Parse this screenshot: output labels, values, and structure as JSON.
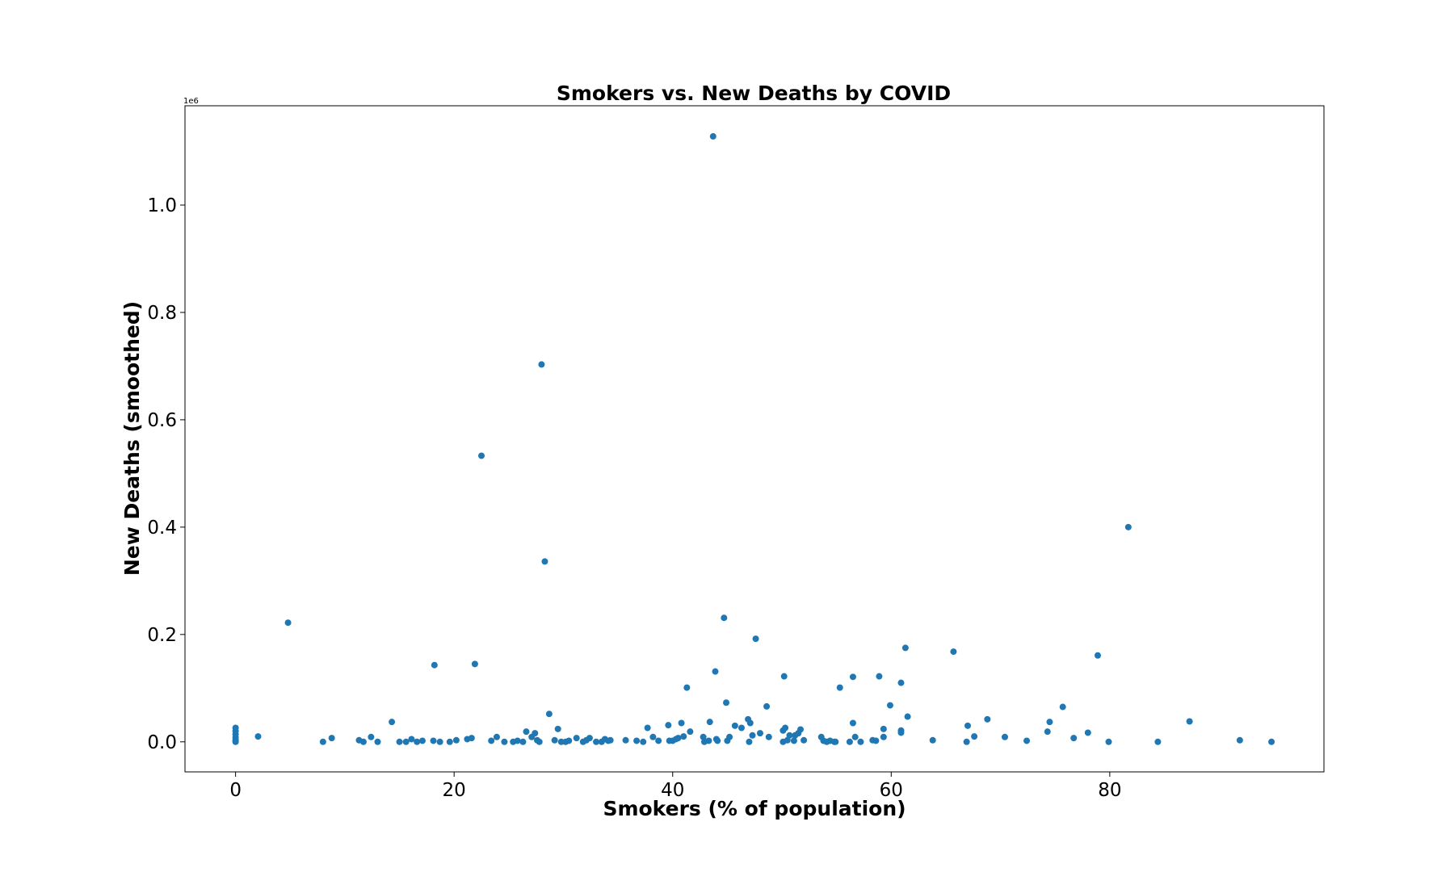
{
  "chart_data": {
    "type": "scatter",
    "title": "Smokers vs. New Deaths by COVID",
    "x_label": "Smokers (% of population)",
    "y_label": "New Deaths (smoothed)",
    "y_offset_label": "1e6",
    "color": "#1f77b4",
    "grid": false,
    "xlim": [
      -4.63,
      99.6
    ],
    "ylim": [
      -0.056,
      1.185
    ],
    "xticks": [
      0,
      20,
      40,
      60,
      80
    ],
    "yticks": [
      {
        "value": 0,
        "label": "0.0"
      },
      {
        "value": 0.2,
        "label": "0.2"
      },
      {
        "value": 0.4,
        "label": "0.4"
      },
      {
        "value": 0.6,
        "label": "0.6"
      },
      {
        "value": 0.8,
        "label": "0.8"
      },
      {
        "value": 1.0,
        "label": "1.0"
      }
    ],
    "x": [
      0,
      0,
      0,
      0,
      0,
      0,
      2.06,
      4.8,
      8.0,
      8.8,
      11.3,
      11.7,
      12.4,
      13.0,
      14.3,
      15.0,
      15.6,
      16.1,
      16.6,
      17.1,
      18.2,
      18.1,
      18.7,
      19.6,
      20.2,
      21.2,
      21.6,
      21.9,
      22.5,
      23.4,
      23.9,
      24.6,
      25.4,
      25.8,
      26.3,
      26.6,
      27.1,
      27.4,
      27.6,
      27.8,
      28.0,
      28.3,
      28.7,
      29.2,
      29.5,
      29.8,
      30.2,
      30.5,
      31.2,
      31.8,
      32.1,
      32.4,
      33.0,
      33.5,
      33.8,
      34.1,
      34.3,
      35.7,
      36.7,
      37.3,
      37.7,
      38.2,
      38.7,
      39.6,
      39.7,
      40.0,
      40.3,
      40.5,
      40.8,
      41.0,
      41.3,
      41.6,
      42.8,
      42.9,
      43.3,
      43.4,
      43.7,
      43.9,
      44.0,
      44.1,
      44.7,
      44.9,
      45.0,
      45.2,
      45.7,
      46.3,
      46.9,
      47.0,
      47.1,
      47.3,
      47.6,
      48.0,
      48.6,
      48.8,
      50.1,
      50.2,
      50.3,
      50.1,
      50.5,
      50.7,
      51.1,
      51.2,
      51.5,
      51.7,
      52.0,
      53.6,
      53.8,
      54.1,
      54.4,
      54.8,
      54.9,
      55.3,
      56.2,
      56.5,
      56.5,
      56.7,
      57.2,
      58.3,
      58.6,
      58.9,
      59.3,
      59.3,
      59.9,
      60.9,
      60.9,
      60.9,
      61.3,
      61.5,
      63.8,
      65.7,
      66.9,
      67.0,
      67.6,
      68.8,
      70.4,
      72.4,
      74.3,
      74.5,
      75.7,
      76.7,
      78.0,
      78.9,
      79.9,
      81.7,
      84.4,
      87.3,
      91.9,
      94.8
    ],
    "values": [
      0.026,
      0.02,
      0.014,
      0.008,
      0.003,
      0,
      0.01,
      0.222,
      0,
      0.007,
      0.003,
      0,
      0.009,
      0,
      0.037,
      0,
      0,
      0.005,
      0,
      0.002,
      0.143,
      0.002,
      0,
      0,
      0.003,
      0.005,
      0.007,
      0.145,
      0.533,
      0.002,
      0.009,
      0,
      0,
      0.002,
      0,
      0.019,
      0.009,
      0.016,
      0.003,
      0,
      0.703,
      0.336,
      0.052,
      0.003,
      0.024,
      0,
      0,
      0.002,
      0.007,
      0,
      0.003,
      0.007,
      0,
      0,
      0.005,
      0.002,
      0.003,
      0.003,
      0.002,
      0,
      0.026,
      0.009,
      0.002,
      0.031,
      0.002,
      0.002,
      0.005,
      0.007,
      0.035,
      0.01,
      0.101,
      0.019,
      0.009,
      0,
      0.002,
      0.037,
      1.128,
      0.131,
      0.005,
      0.002,
      0.231,
      0.073,
      0.002,
      0.009,
      0.03,
      0.026,
      0.042,
      0,
      0.035,
      0.012,
      0.192,
      0.016,
      0.066,
      0.009,
      0.021,
      0.122,
      0.026,
      0,
      0.003,
      0.012,
      0.002,
      0.012,
      0.016,
      0.023,
      0.003,
      0.009,
      0.002,
      0,
      0.002,
      0,
      0,
      0.101,
      0,
      0.035,
      0.121,
      0.009,
      0,
      0.003,
      0.002,
      0.122,
      0.009,
      0.024,
      0.068,
      0.021,
      0.017,
      0.11,
      0.175,
      0.047,
      0.003,
      0.168,
      0,
      0.03,
      0.01,
      0.042,
      0.009,
      0.002,
      0.019,
      0.037,
      0.065,
      0.007,
      0.017,
      0.161,
      0,
      0.4,
      0,
      0.038,
      0.003,
      0
    ]
  }
}
